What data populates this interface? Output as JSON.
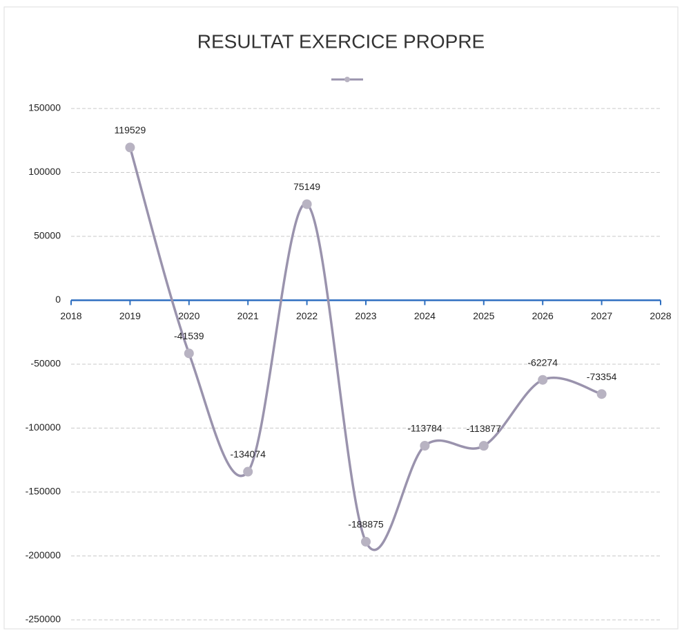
{
  "chart_data": {
    "type": "line",
    "title": "RESULTAT EXERCICE PROPRE",
    "x": [
      2019,
      2020,
      2021,
      2022,
      2023,
      2024,
      2025,
      2026,
      2027
    ],
    "series": [
      {
        "color": "#9a93ad",
        "values": [
          119529,
          -41539,
          -134074,
          75149,
          -188875,
          -113784,
          -113877,
          -62274,
          -73354
        ]
      }
    ],
    "xlim": [
      2018,
      2028
    ],
    "xticks": [
      2018,
      2019,
      2020,
      2021,
      2022,
      2023,
      2024,
      2025,
      2026,
      2027,
      2028
    ],
    "ylim": [
      -250000,
      150000
    ],
    "yticks": [
      -250000,
      -200000,
      -150000,
      -100000,
      -50000,
      0,
      50000,
      100000,
      150000
    ],
    "grid": true,
    "smooth": true,
    "axis_color": "#2e6fc0",
    "marker_color": "#b8b3c2"
  }
}
